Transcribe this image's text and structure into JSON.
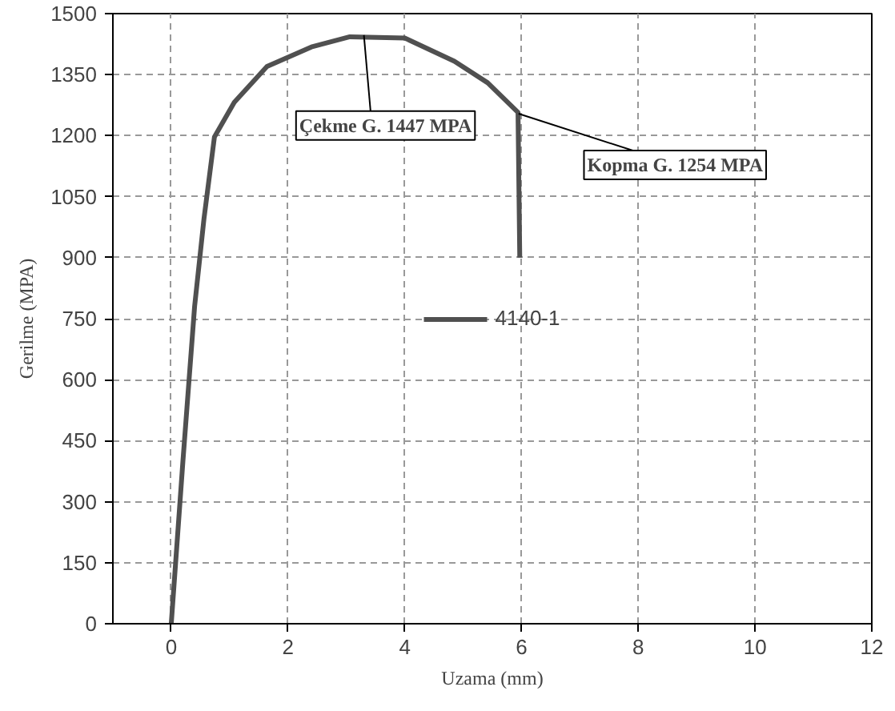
{
  "chart_data": {
    "type": "line",
    "xlabel": "Uzama (mm)",
    "ylabel": "Gerilme (MPA)",
    "xlim": [
      -1,
      12
    ],
    "xticks": [
      0,
      2,
      4,
      6,
      8,
      10,
      12
    ],
    "ylim": [
      0,
      1500
    ],
    "yticks": [
      0,
      150,
      300,
      450,
      600,
      750,
      900,
      1050,
      1200,
      1350,
      1500
    ],
    "grid": true,
    "legend": "center",
    "marker": "none",
    "line_style": "solid",
    "series": [
      {
        "name": "4140-1",
        "color": "#505050",
        "x": [
          0,
          0.2,
          0.4,
          0.56,
          0.74,
          1.08,
          1.64,
          2.4,
          3.06,
          4.0,
          4.85,
          5.42,
          5.94,
          5.97
        ],
        "values": [
          0,
          400,
          780,
          995,
          1197,
          1282,
          1370,
          1418,
          1443,
          1440,
          1383,
          1330,
          1257,
          900
        ]
      }
    ],
    "annotations": [
      {
        "text": "Çekme G. 1447 MPA",
        "x": 3.3,
        "y": 1447
      },
      {
        "text": "Kopma G. 1254 MPA",
        "x": 5.95,
        "y": 1254
      }
    ]
  }
}
